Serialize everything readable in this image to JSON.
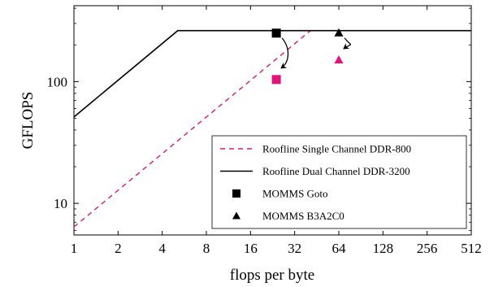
{
  "chart_data": {
    "type": "line",
    "title": "",
    "xlabel": "flops per byte",
    "ylabel": "GFLOPS",
    "x_scale": "log2",
    "y_scale": "log10",
    "xlim": [
      1,
      512
    ],
    "ylim": [
      5.5,
      420
    ],
    "x_ticks": [
      1,
      2,
      4,
      8,
      16,
      32,
      64,
      128,
      256,
      512
    ],
    "x_tick_labels": [
      "1",
      "2",
      "4",
      "8",
      "16",
      "32",
      "64",
      "128",
      "256",
      "512"
    ],
    "y_ticks": [
      10,
      100
    ],
    "y_tick_labels": [
      "10",
      "100"
    ],
    "grid": false,
    "legend_position": "bottom-right",
    "colors": {
      "single_channel": "#e0147a",
      "dual_channel": "#000000",
      "arrow": "#000000"
    },
    "series": [
      {
        "name": "Roofline Single Channel DDR-800",
        "style": "dashed",
        "color": "#e0147a",
        "x": [
          1,
          41,
          512
        ],
        "y": [
          6.4,
          262,
          262
        ]
      },
      {
        "name": "Roofline Dual Channel DDR-3200",
        "style": "solid",
        "color": "#000000",
        "x": [
          1,
          5.1,
          512
        ],
        "y": [
          51.2,
          262,
          262
        ]
      }
    ],
    "points": [
      {
        "series": "MOMMS Goto",
        "marker": "square",
        "color": "#000000",
        "x": 24,
        "y": 250
      },
      {
        "series": "MOMMS Goto",
        "marker": "square",
        "color": "#e0147a",
        "x": 24,
        "y": 104
      },
      {
        "series": "MOMMS B3A2C0",
        "marker": "triangle",
        "color": "#000000",
        "x": 64,
        "y": 250
      },
      {
        "series": "MOMMS B3A2C0",
        "marker": "triangle",
        "color": "#e0147a",
        "x": 64,
        "y": 150
      }
    ],
    "legend": [
      {
        "label": "Roofline Single Channel DDR-800",
        "symbol": "dashed-line",
        "color": "#e0147a"
      },
      {
        "label": "Roofline Dual Channel DDR-3200",
        "symbol": "solid-line",
        "color": "#000000"
      },
      {
        "label": "MOMMS Goto",
        "symbol": "square",
        "color": "#000000"
      },
      {
        "label": "MOMMS B3A2C0",
        "symbol": "triangle",
        "color": "#000000"
      }
    ]
  }
}
